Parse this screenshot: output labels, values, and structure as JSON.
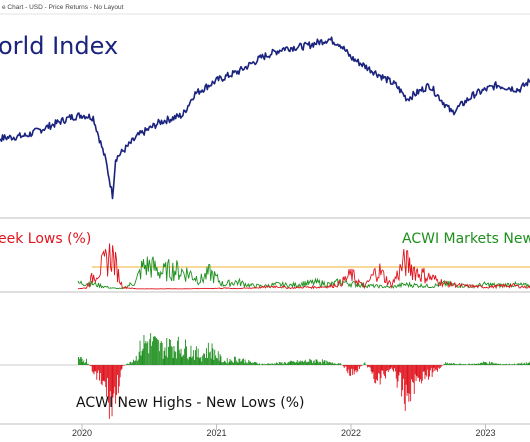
{
  "colors": {
    "index_line": "#1a237e",
    "new_lows": "#e0141e",
    "new_highs": "#1f8f1f",
    "reference_line": "#f2b632",
    "panel_border": "#bfbfbf",
    "grid": "#d9d9d9",
    "axis_text": "#333333"
  },
  "chart_data": [
    {
      "type": "line",
      "title": "orld Index",
      "subtitle": "e Chart - USD - Price Returns - No Layout",
      "series": [
        {
          "x": [
            "2019-02",
            "2019-04",
            "2019-06",
            "2019-08",
            "2019-10",
            "2019-12",
            "2020-01",
            "2020-02",
            "2020-03-05",
            "2020-03-23",
            "2020-04",
            "2020-06",
            "2020-08",
            "2020-10",
            "2020-11",
            "2021-01",
            "2021-03",
            "2021-05",
            "2021-07",
            "2021-09",
            "2021-11",
            "2021-12",
            "2022-01",
            "2022-03",
            "2022-05",
            "2022-06",
            "2022-08",
            "2022-10",
            "2022-12",
            "2023-02",
            "2023-04",
            "2023-06",
            "2023-08",
            "2023-10"
          ],
          "values": [
            100,
            104,
            105,
            106,
            110,
            114,
            115,
            114,
            95,
            80,
            96,
            106,
            112,
            115,
            124,
            130,
            134,
            140,
            144,
            145,
            148,
            146,
            140,
            134,
            128,
            122,
            128,
            116,
            124,
            128,
            126,
            134,
            132,
            124
          ]
        }
      ],
      "ylim": [
        78,
        152
      ],
      "grid": false
    },
    {
      "type": "area",
      "title_left": "eek Lows (%)",
      "title_right": "ACWI Markets New S",
      "series": [
        {
          "x": [
            2019.97,
            2020.03,
            2020.1,
            2020.16,
            2020.22,
            2020.3,
            2020.4,
            2020.45,
            2020.5,
            2020.55,
            2020.6,
            2020.66,
            2020.72,
            2020.8,
            2020.88,
            2020.95,
            2021.05,
            2021.15,
            2021.25,
            2021.35,
            2021.45,
            2021.55,
            2021.65,
            2021.75,
            2021.85,
            2021.92,
            2022.0,
            2022.1,
            2022.2,
            2022.3,
            2022.4,
            2022.5,
            2022.6,
            2022.7,
            2022.8,
            2022.9,
            2023.0,
            2023.1,
            2023.2,
            2023.3,
            2023.38,
            2023.45,
            2023.55
          ],
          "values": [
            6,
            7,
            5,
            3,
            1,
            0.5,
            8,
            24,
            26,
            22,
            18,
            22,
            20,
            17,
            10,
            18,
            5,
            8,
            4,
            3,
            5,
            4,
            6,
            7,
            5,
            8,
            6,
            4,
            3,
            2,
            5,
            4,
            3,
            6,
            4,
            3,
            5,
            4,
            5,
            4,
            6,
            5,
            4
          ]
        },
        {
          "x": [
            2019.97,
            2020.03,
            2020.1,
            2020.16,
            2020.22,
            2020.3,
            2020.4,
            2020.45,
            2020.5,
            2020.55,
            2020.6,
            2020.66,
            2020.72,
            2020.8,
            2020.88,
            2020.95,
            2021.05,
            2021.15,
            2021.25,
            2021.35,
            2021.45,
            2021.55,
            2021.65,
            2021.75,
            2021.85,
            2021.92,
            2022.0,
            2022.1,
            2022.2,
            2022.3,
            2022.4,
            2022.5,
            2022.6,
            2022.7,
            2022.8,
            2022.9,
            2023.0,
            2023.1,
            2023.2,
            2023.3,
            2023.38,
            2023.45,
            2023.55
          ],
          "values": [
            0.5,
            1,
            18,
            26,
            40,
            2,
            0.3,
            0.2,
            0.2,
            0.2,
            0.2,
            0.3,
            0.2,
            0.3,
            0.5,
            0.5,
            1,
            0.5,
            1,
            2,
            3,
            1,
            2,
            2,
            3,
            6,
            16,
            2,
            22,
            4,
            30,
            18,
            12,
            6,
            4,
            3,
            2,
            3,
            4,
            2,
            3,
            6,
            12
          ]
        }
      ],
      "reference_value": 22,
      "ylim": [
        0,
        45
      ],
      "xlim": [
        2019.97,
        2023.55
      ]
    },
    {
      "type": "bar",
      "title": "ACWI New Highs - New Lows (%)",
      "series": [
        {
          "x": [
            2019.97,
            2020.03,
            2020.1,
            2020.16,
            2020.22,
            2020.3,
            2020.4,
            2020.45,
            2020.5,
            2020.55,
            2020.6,
            2020.66,
            2020.72,
            2020.8,
            2020.88,
            2020.95,
            2021.05,
            2021.15,
            2021.25,
            2021.35,
            2021.45,
            2021.55,
            2021.65,
            2021.75,
            2021.85,
            2021.92,
            2022.0,
            2022.1,
            2022.2,
            2022.3,
            2022.4,
            2022.5,
            2022.6,
            2022.7,
            2022.8,
            2022.9,
            2023.0,
            2023.1,
            2023.2,
            2023.3,
            2023.38,
            2023.45,
            2023.55
          ],
          "values": [
            6,
            5,
            -12,
            -22,
            -45,
            -2,
            8,
            24,
            26,
            22,
            18,
            22,
            20,
            17,
            10,
            18,
            4,
            7,
            3,
            1,
            2,
            3,
            4,
            5,
            2,
            2,
            -10,
            2,
            -18,
            -2,
            -36,
            -14,
            -9,
            2,
            1,
            1,
            3,
            1,
            1,
            2,
            3,
            -1,
            -8
          ]
        }
      ],
      "ylim": [
        -48,
        30
      ],
      "xlim": [
        2019.97,
        2023.55
      ]
    }
  ],
  "x_axis": {
    "tick_labels": [
      "2020",
      "2021",
      "2022",
      "2023"
    ],
    "tick_values": [
      2020,
      2021,
      2022,
      2023
    ]
  }
}
